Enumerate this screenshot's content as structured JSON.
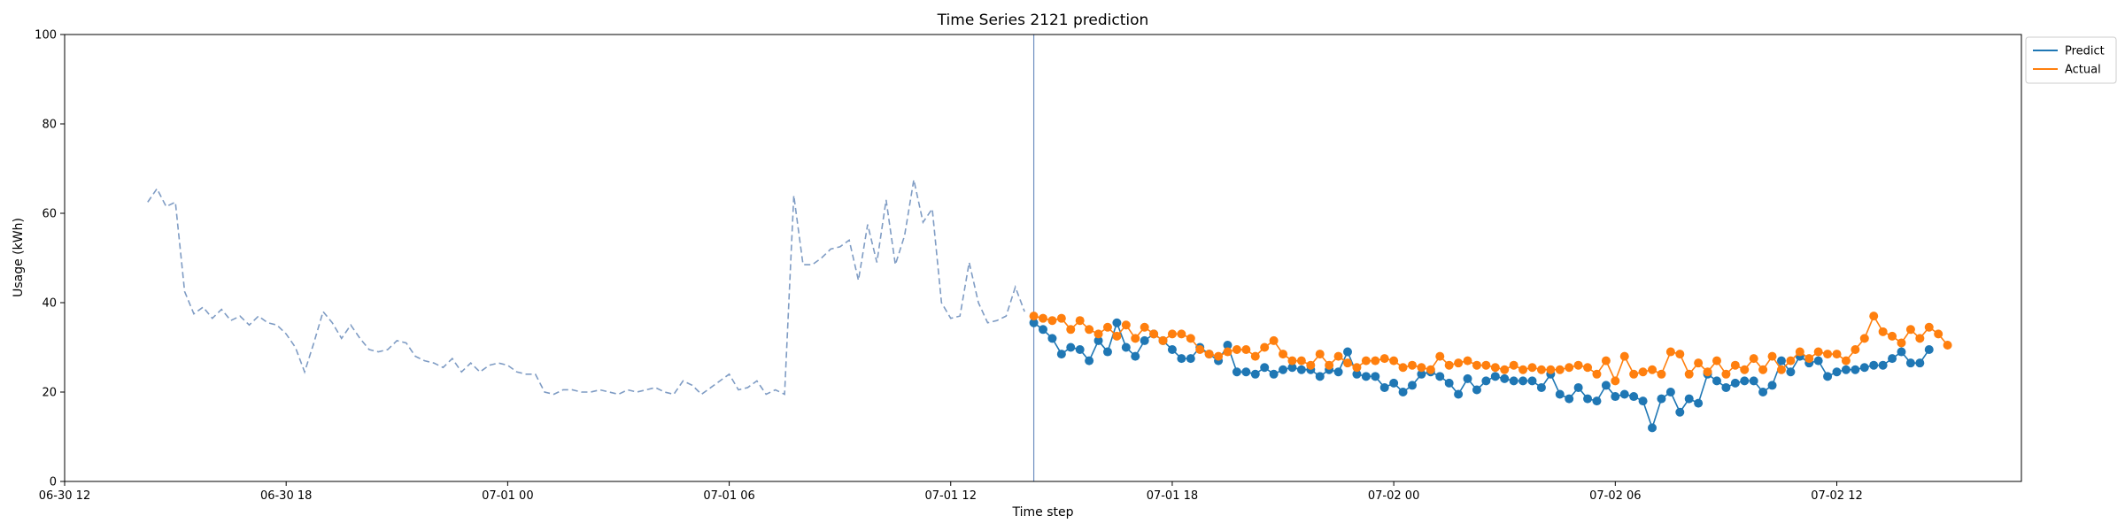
{
  "chart_data": {
    "type": "line",
    "title": "Time Series 2121 prediction",
    "xlabel": "Time step",
    "ylabel": "Usage (kWh)",
    "ylim": [
      0,
      100
    ],
    "xlim": [
      "2024-06-30 12:00",
      "2024-07-02 17:00"
    ],
    "x_ticks": [
      {
        "t": "2024-06-30 12:00",
        "label": "06-30 12"
      },
      {
        "t": "2024-06-30 18:00",
        "label": "06-30 18"
      },
      {
        "t": "2024-07-01 00:00",
        "label": "07-01 00"
      },
      {
        "t": "2024-07-01 06:00",
        "label": "07-01 06"
      },
      {
        "t": "2024-07-01 12:00",
        "label": "07-01 12"
      },
      {
        "t": "2024-07-01 18:00",
        "label": "07-01 18"
      },
      {
        "t": "2024-07-02 00:00",
        "label": "07-02 00"
      },
      {
        "t": "2024-07-02 06:00",
        "label": "07-02 06"
      },
      {
        "t": "2024-07-02 12:00",
        "label": "07-02 12"
      }
    ],
    "y_ticks": [
      0,
      20,
      40,
      60,
      80,
      100
    ],
    "grid": false,
    "legend_position": "outside-top-right",
    "forecast_start": "2024-07-01 14:15",
    "series": [
      {
        "name": "",
        "role": "history",
        "style": "dashed",
        "color": "#7f9cc4",
        "start": "2024-06-30 14:15",
        "interval_minutes": 15,
        "values": [
          62.5,
          65.5,
          61.5,
          62.5,
          42.5,
          37.5,
          39.0,
          36.5,
          38.5,
          36.0,
          37.0,
          35.0,
          37.0,
          35.5,
          35.0,
          33.0,
          30.0,
          24.5,
          31.0,
          38.0,
          35.5,
          32.0,
          35.0,
          32.0,
          29.5,
          29.0,
          29.5,
          31.5,
          31.0,
          28.0,
          27.0,
          26.5,
          25.5,
          27.5,
          24.5,
          26.5,
          24.5,
          26.0,
          26.5,
          26.0,
          24.5,
          24.0,
          24.0,
          20.0,
          19.5,
          20.5,
          20.5,
          20.0,
          20.0,
          20.5,
          20.0,
          19.5,
          20.5,
          20.0,
          20.5,
          21.0,
          20.0,
          19.5,
          22.5,
          21.5,
          19.5,
          21.0,
          22.5,
          24.0,
          20.5,
          21.0,
          22.5,
          19.5,
          20.5,
          19.5,
          64.0,
          48.5,
          48.5,
          50.0,
          52.0,
          52.5,
          54.0,
          45.0,
          57.5,
          49.0,
          63.0,
          48.5,
          55.0,
          67.5,
          58.0,
          61.0,
          40.0,
          36.5,
          37.0,
          49.0,
          40.0,
          35.5,
          36.0,
          37.0,
          43.5,
          38.0
        ]
      },
      {
        "name": "Predict",
        "color": "#1f77b4",
        "start": "2024-07-01 14:15",
        "interval_minutes": 15,
        "values": [
          35.5,
          34.0,
          32.0,
          28.5,
          30.0,
          29.5,
          27.0,
          31.5,
          29.0,
          35.5,
          30.0,
          28.0,
          31.5,
          33.0,
          31.5,
          29.5,
          27.5,
          27.5,
          30.0,
          28.5,
          27.0,
          30.5,
          24.5,
          24.5,
          24.0,
          25.5,
          24.0,
          25.0,
          25.5,
          25.0,
          25.0,
          23.5,
          25.0,
          24.5,
          29.0,
          24.0,
          23.5,
          23.5,
          21.0,
          22.0,
          20.0,
          21.5,
          24.0,
          24.5,
          23.5,
          22.0,
          19.5,
          23.0,
          20.5,
          22.5,
          23.5,
          23.0,
          22.5,
          22.5,
          22.5,
          21.0,
          24.0,
          19.5,
          18.5,
          21.0,
          18.5,
          18.0,
          21.5,
          19.0,
          19.5,
          19.0,
          18.0,
          12.0,
          18.5,
          20.0,
          15.5,
          18.5,
          17.5,
          24.0,
          22.5,
          21.0,
          22.0,
          22.5,
          22.5,
          20.0,
          21.5,
          27.0,
          24.5,
          28.0,
          26.5,
          27.0,
          23.5,
          24.5,
          25.0,
          25.0,
          25.5,
          26.0,
          26.0,
          27.5,
          29.0,
          26.5,
          26.5,
          29.5
        ]
      },
      {
        "name": "Actual",
        "color": "#ff7f0e",
        "start": "2024-07-01 14:15",
        "interval_minutes": 15,
        "values": [
          37.0,
          36.5,
          36.0,
          36.5,
          34.0,
          36.0,
          34.0,
          33.0,
          34.5,
          32.5,
          35.0,
          32.0,
          34.5,
          33.0,
          31.5,
          33.0,
          33.0,
          32.0,
          29.5,
          28.5,
          28.0,
          29.0,
          29.5,
          29.5,
          28.0,
          30.0,
          31.5,
          28.5,
          27.0,
          27.0,
          26.0,
          28.5,
          26.0,
          28.0,
          26.5,
          25.5,
          27.0,
          27.0,
          27.5,
          27.0,
          25.5,
          26.0,
          25.5,
          25.0,
          28.0,
          26.0,
          26.5,
          27.0,
          26.0,
          26.0,
          25.5,
          25.0,
          26.0,
          25.0,
          25.5,
          25.0,
          25.0,
          25.0,
          25.5,
          26.0,
          25.5,
          24.0,
          27.0,
          22.5,
          28.0,
          24.0,
          24.5,
          25.0,
          24.0,
          29.0,
          28.5,
          24.0,
          26.5,
          24.5,
          27.0,
          24.0,
          26.0,
          25.0,
          27.5,
          25.0,
          28.0,
          25.0,
          27.0,
          29.0,
          27.5,
          29.0,
          28.5,
          28.5,
          27.0,
          29.5,
          32.0,
          37.0,
          33.5,
          32.5,
          31.0,
          34.0,
          32.0,
          34.5,
          33.0,
          30.5
        ]
      }
    ]
  }
}
